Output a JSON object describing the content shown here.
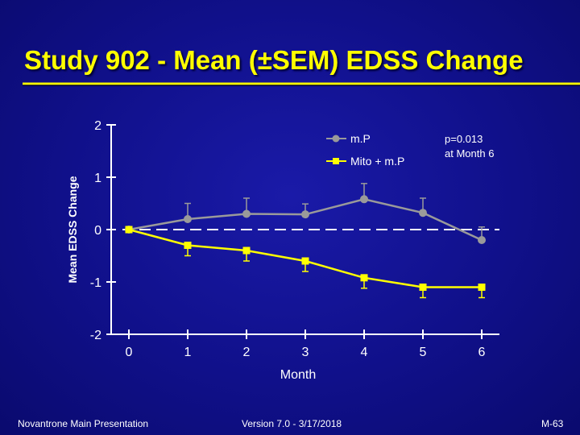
{
  "slide": {
    "title": "Study 902 - Mean (±SEM) EDSS Change",
    "footer_left": "Novantrone Main Presentation",
    "footer_center": "Version 7.0 - 3/17/2018",
    "footer_right": "M-63"
  },
  "colors": {
    "background": "#10108a",
    "title": "#ffff00",
    "title_rule": "#ffff00",
    "axis": "#ffffff",
    "text": "#ffffff",
    "series_mp": "#9a9a9a",
    "series_mito": "#ffff00",
    "zero_line": "#ffffff"
  },
  "chart_data": {
    "type": "line",
    "title": "",
    "xlabel": "Month",
    "ylabel": "Mean EDSS Change",
    "x": [
      0,
      1,
      2,
      3,
      4,
      5,
      6
    ],
    "x_ticks": [
      "0",
      "1",
      "2",
      "3",
      "4",
      "5",
      "6"
    ],
    "y_ticks": [
      "2",
      "1",
      "0",
      "-1",
      "-2"
    ],
    "y_tick_values": [
      2,
      1,
      0,
      -1,
      -2
    ],
    "ylim": [
      -2,
      2
    ],
    "xlim": [
      0,
      6
    ],
    "reference_line": {
      "y": 0,
      "style": "dashed"
    },
    "legend_position": "top-right",
    "series": [
      {
        "name": "m.P",
        "marker": "circle",
        "color": "#9a9a9a",
        "values": [
          0,
          0.2,
          0.3,
          0.29,
          0.58,
          0.32,
          -0.2
        ],
        "sem": [
          0,
          0.3,
          0.3,
          0.2,
          0.3,
          0.28,
          0.25
        ],
        "error_direction": "up"
      },
      {
        "name": "Mito + m.P",
        "marker": "square",
        "color": "#ffff00",
        "values": [
          0,
          -0.3,
          -0.4,
          -0.6,
          -0.92,
          -1.1,
          -1.1
        ],
        "sem": [
          0,
          0.2,
          0.2,
          0.2,
          0.2,
          0.2,
          0.2
        ],
        "error_direction": "down"
      }
    ],
    "annotation": {
      "line1": "p=0.013",
      "line2": "at Month 6"
    }
  }
}
